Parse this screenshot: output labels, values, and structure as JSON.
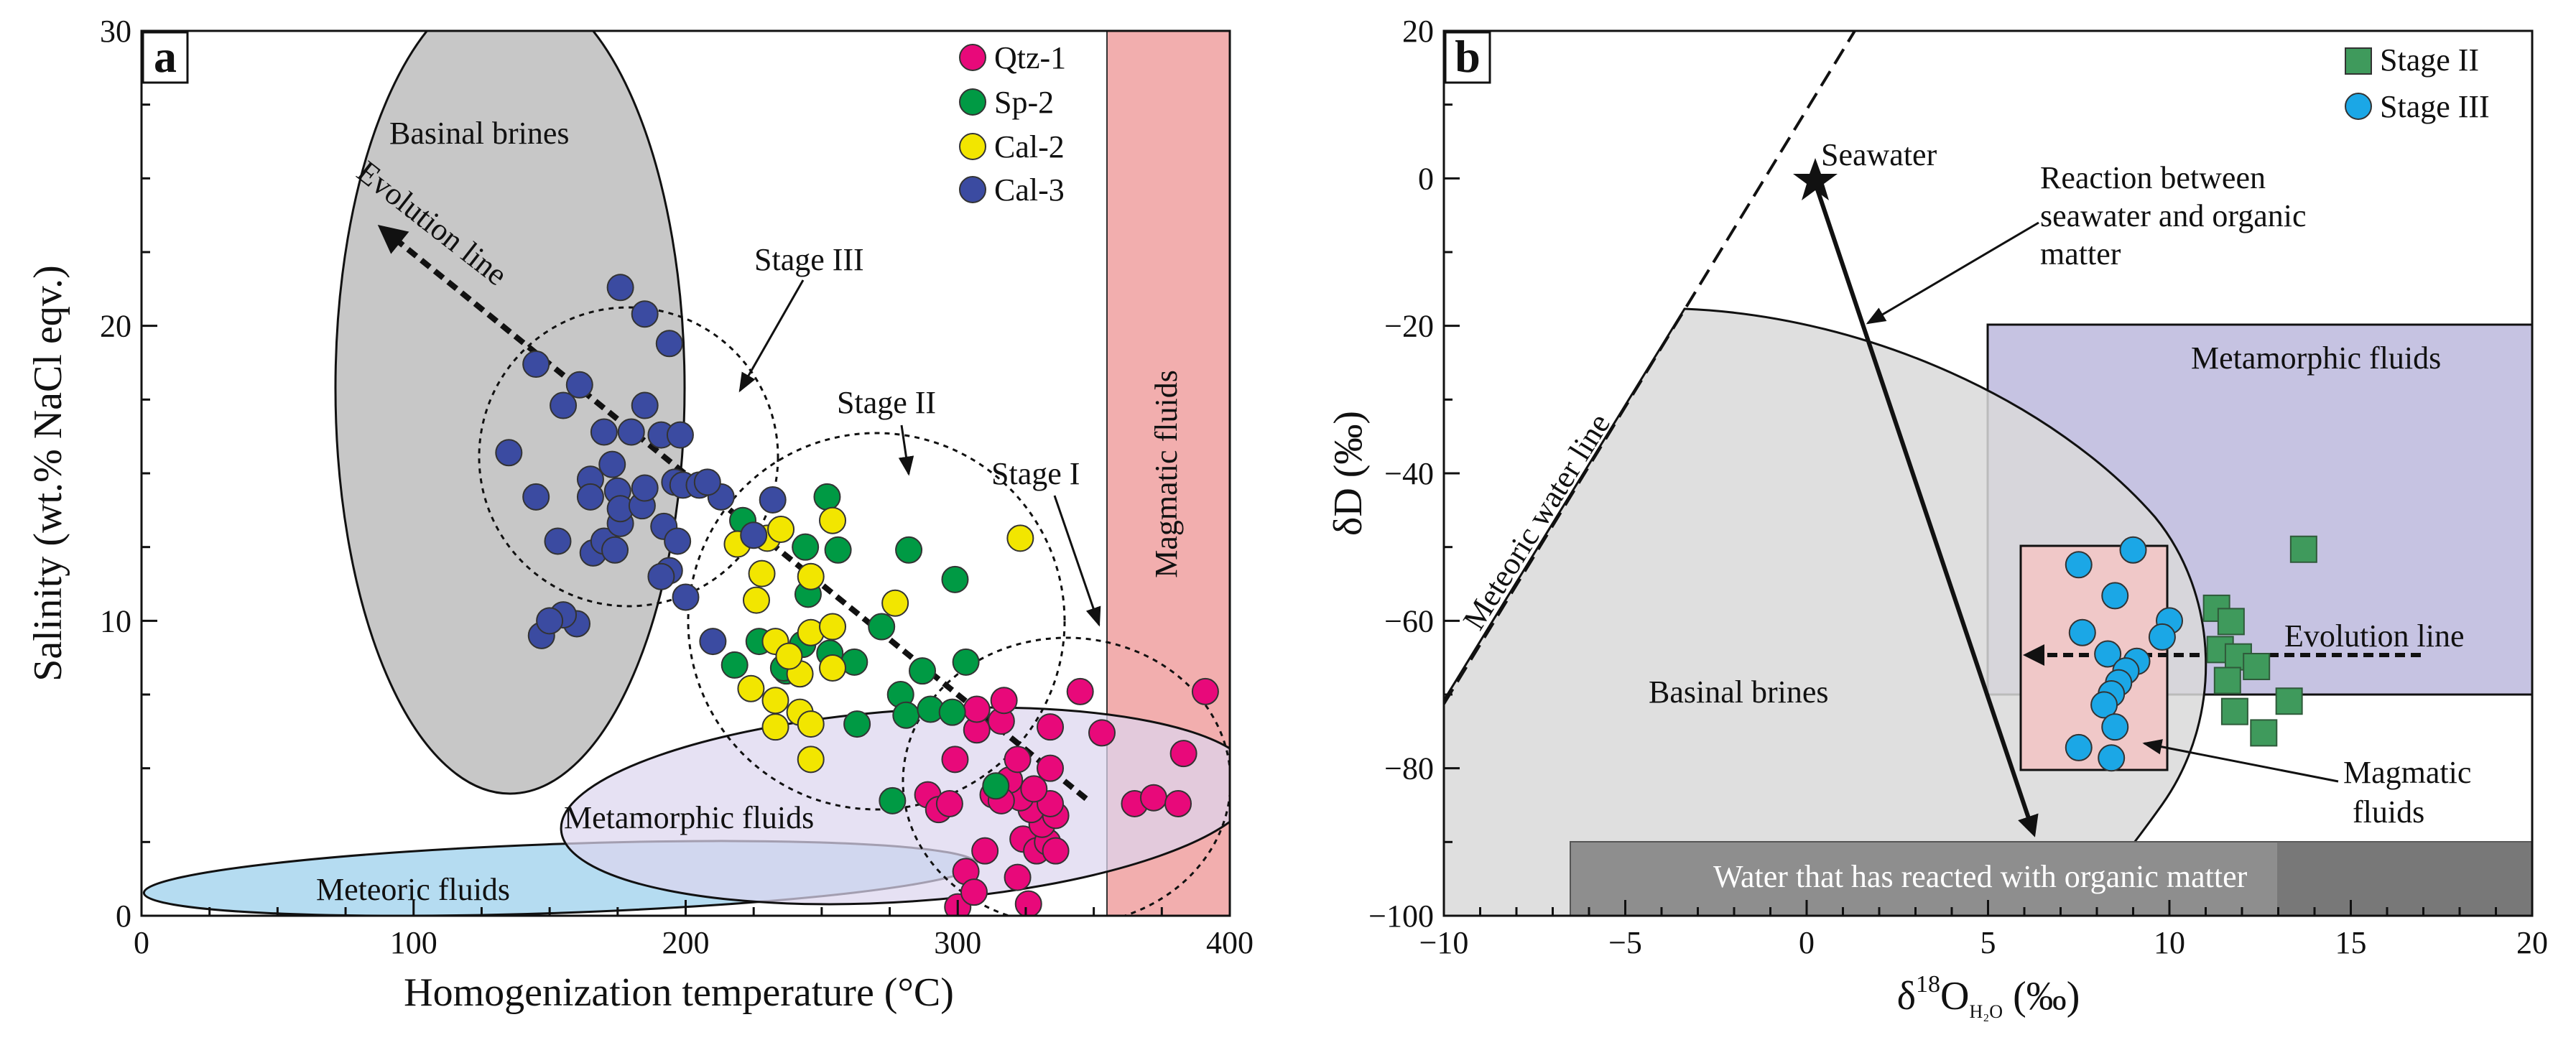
{
  "chart_data": [
    {
      "type": "scatter",
      "panel_label": "a",
      "xlabel": "Homogenization temperature (°C)",
      "ylabel": "Salinity (wt.% NaCl eqv.)",
      "xlim": [
        0,
        400
      ],
      "ylim": [
        0,
        30
      ],
      "xticks": [
        "0",
        "100",
        "200",
        "300",
        "400"
      ],
      "yticks": [
        "0",
        "10",
        "20",
        "30"
      ],
      "legend_position": "top-right",
      "series": [
        {
          "name": "Qtz-1",
          "color": "#e8097a",
          "points": [
            [
              300,
              0.3
            ],
            [
              303,
              1.5
            ],
            [
              306,
              0.8
            ],
            [
              310,
              2.2
            ],
            [
              322,
              1.3
            ],
            [
              326,
              0.4
            ],
            [
              324,
              2.6
            ],
            [
              329,
              2.2
            ],
            [
              333,
              2.5
            ],
            [
              336,
              2.2
            ],
            [
              331,
              3.1
            ],
            [
              336,
              3.4
            ],
            [
              327,
              3.6
            ],
            [
              334,
              3.8
            ],
            [
              323,
              4.0
            ],
            [
              328,
              4.3
            ],
            [
              319,
              4.6
            ],
            [
              313,
              4.1
            ],
            [
              316,
              3.9
            ],
            [
              289,
              4.1
            ],
            [
              293,
              3.6
            ],
            [
              297,
              3.8
            ],
            [
              299,
              5.3
            ],
            [
              322,
              5.3
            ],
            [
              334,
              5.0
            ],
            [
              334,
              6.4
            ],
            [
              316,
              6.6
            ],
            [
              307,
              6.3
            ],
            [
              317,
              7.3
            ],
            [
              307,
              7.0
            ],
            [
              345,
              7.6
            ],
            [
              353,
              6.2
            ],
            [
              365,
              3.8
            ],
            [
              372,
              4.0
            ],
            [
              381,
              3.8
            ],
            [
              383,
              5.5
            ],
            [
              391,
              7.6
            ]
          ]
        },
        {
          "name": "Sp-2",
          "color": "#009a44",
          "points": [
            [
              221,
              13.4
            ],
            [
              252,
              14.2
            ],
            [
              244,
              12.5
            ],
            [
              245,
              10.9
            ],
            [
              227,
              9.3
            ],
            [
              237,
              8.3
            ],
            [
              253,
              8.9
            ],
            [
              262,
              8.6
            ],
            [
              272,
              9.8
            ],
            [
              256,
              12.4
            ],
            [
              282,
              12.4
            ],
            [
              299,
              11.4
            ],
            [
              303,
              8.6
            ],
            [
              287,
              8.3
            ],
            [
              279,
              7.5
            ],
            [
              281,
              6.8
            ],
            [
              263,
              6.5
            ],
            [
              290,
              7.0
            ],
            [
              298,
              6.9
            ],
            [
              276,
              3.9
            ],
            [
              314,
              4.4
            ],
            [
              243,
              9.2
            ],
            [
              236,
              8.4
            ],
            [
              218,
              8.5
            ]
          ]
        },
        {
          "name": "Cal-2",
          "color": "#f2e600",
          "points": [
            [
              219,
              12.6
            ],
            [
              230,
              12.8
            ],
            [
              235,
              13.1
            ],
            [
              228,
              11.6
            ],
            [
              226,
              10.7
            ],
            [
              246,
              11.5
            ],
            [
              254,
              13.4
            ],
            [
              254,
              8.4
            ],
            [
              233,
              9.3
            ],
            [
              246,
              9.6
            ],
            [
              254,
              9.8
            ],
            [
              242,
              8.2
            ],
            [
              238,
              8.8
            ],
            [
              233,
              7.3
            ],
            [
              224,
              7.7
            ],
            [
              242,
              6.9
            ],
            [
              246,
              6.5
            ],
            [
              233,
              6.4
            ],
            [
              246,
              5.3
            ],
            [
              277,
              10.6
            ],
            [
              323,
              12.8
            ]
          ]
        },
        {
          "name": "Cal-3",
          "color": "#3b4ba1",
          "points": [
            [
              135,
              15.7
            ],
            [
              145,
              14.2
            ],
            [
              145,
              18.7
            ],
            [
              155,
              17.3
            ],
            [
              161,
              18.0
            ],
            [
              176,
              21.3
            ],
            [
              185,
              20.4
            ],
            [
              194,
              19.4
            ],
            [
              185,
              17.3
            ],
            [
              191,
              16.3
            ],
            [
              173,
              15.3
            ],
            [
              170,
              16.4
            ],
            [
              165,
              14.8
            ],
            [
              165,
              14.2
            ],
            [
              166,
              12.3
            ],
            [
              170,
              12.7
            ],
            [
              175,
              14.4
            ],
            [
              176,
              13.3
            ],
            [
              176,
              13.8
            ],
            [
              184,
              13.9
            ],
            [
              185,
              14.5
            ],
            [
              180,
              16.4
            ],
            [
              192,
              13.2
            ],
            [
              196,
              14.7
            ],
            [
              199,
              14.6
            ],
            [
              198,
              16.3
            ],
            [
              205,
              14.6
            ],
            [
              213,
              14.2
            ],
            [
              208,
              14.7
            ],
            [
              194,
              11.7
            ],
            [
              197,
              12.7
            ],
            [
              200,
              10.8
            ],
            [
              191,
              11.5
            ],
            [
              174,
              12.4
            ],
            [
              153,
              12.7
            ],
            [
              160,
              9.9
            ],
            [
              155,
              10.2
            ],
            [
              147,
              9.5
            ],
            [
              150,
              10.0
            ],
            [
              210,
              9.3
            ],
            [
              225,
              12.9
            ],
            [
              232,
              14.1
            ]
          ]
        }
      ],
      "regions": [
        {
          "name": "Basinal brines"
        },
        {
          "name": "Meteoric fluids"
        },
        {
          "name": "Metamorphic fluids"
        },
        {
          "name": "Magmatic fluids",
          "x_range": [
            355,
            400
          ],
          "y_range": [
            0,
            30
          ]
        }
      ],
      "annotations": [
        "Evolution line",
        "Stage III",
        "Stage II",
        "Stage I"
      ]
    },
    {
      "type": "scatter",
      "panel_label": "b",
      "xlabel_main": "δ",
      "xlabel_sup": "18",
      "xlabel_o": "O",
      "xlabel_sub": "H₂O",
      "xlabel_unit": " (‰)",
      "ylabel": "δD (‰)",
      "xlim": [
        -10,
        20
      ],
      "ylim": [
        -100,
        20
      ],
      "xticks": [
        "−10",
        "−5",
        "0",
        "5",
        "10",
        "15",
        "20"
      ],
      "yticks": [
        "−100",
        "−80",
        "−60",
        "−40",
        "−20",
        "0",
        "20"
      ],
      "legend_position": "top-right",
      "series": [
        {
          "name": "Stage II",
          "color": "#3f9a5c",
          "marker": "square",
          "points": [
            [
              13.7,
              -50.3
            ],
            [
              11.3,
              -58.3
            ],
            [
              11.7,
              -60.1
            ],
            [
              11.4,
              -63.9
            ],
            [
              11.9,
              -64.9
            ],
            [
              12.4,
              -66.2
            ],
            [
              11.6,
              -68.1
            ],
            [
              11.8,
              -72.3
            ],
            [
              12.6,
              -75.2
            ],
            [
              13.3,
              -70.9
            ]
          ]
        },
        {
          "name": "Stage III",
          "color": "#1ba7e6",
          "marker": "circle",
          "points": [
            [
              9.0,
              -50.4
            ],
            [
              7.5,
              -52.4
            ],
            [
              8.5,
              -56.6
            ],
            [
              10.0,
              -60.0
            ],
            [
              7.6,
              -61.6
            ],
            [
              9.8,
              -62.2
            ],
            [
              8.3,
              -64.5
            ],
            [
              9.1,
              -65.5
            ],
            [
              8.8,
              -66.8
            ],
            [
              8.6,
              -68.4
            ],
            [
              8.4,
              -69.9
            ],
            [
              8.2,
              -71.4
            ],
            [
              8.5,
              -74.4
            ],
            [
              7.5,
              -77.2
            ],
            [
              8.4,
              -78.6
            ]
          ]
        }
      ],
      "regions": [
        {
          "name": "Metamorphic fluids",
          "x_range": [
            5,
            20
          ],
          "y_range": [
            -70,
            -20
          ]
        },
        {
          "name": "Basinal brines"
        },
        {
          "name": "Magmatic fluids",
          "x_range": [
            5.5,
            9.8
          ],
          "y_range": [
            -80,
            -50
          ]
        },
        {
          "name": "Water that has reacted with organic matter",
          "x_range": [
            -6.5,
            20
          ],
          "y_range": [
            -100,
            -90
          ]
        }
      ],
      "lines": [
        {
          "name": "Meteoric water line"
        },
        {
          "name": "Evolution line"
        }
      ],
      "annotations": [
        "Seawater",
        "Reaction between",
        "seawater and organic",
        "matter"
      ]
    }
  ]
}
